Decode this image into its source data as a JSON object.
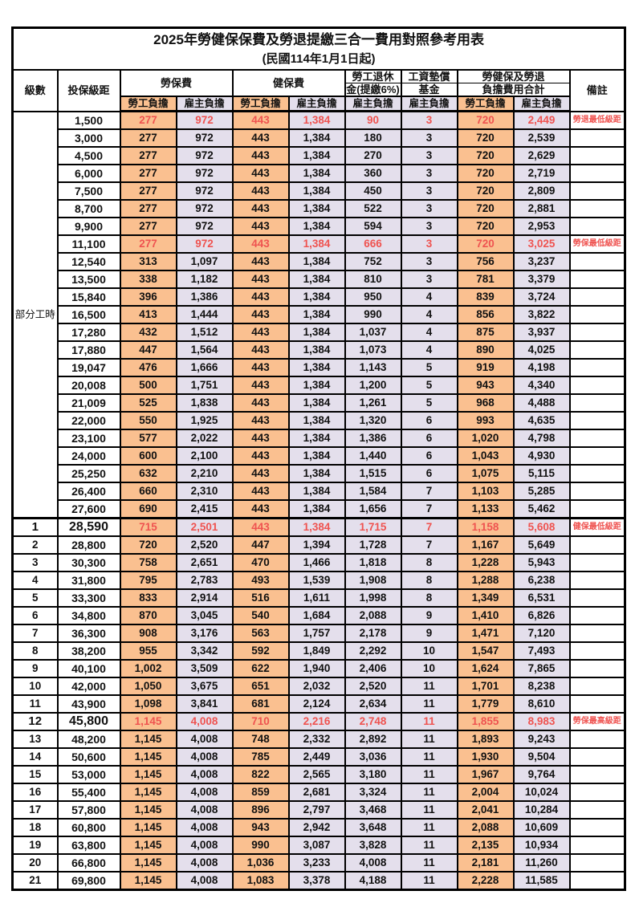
{
  "title": "2025年勞健保保費及勞退提繳三合一費用對照參考用表",
  "subtitle": "(民國114年1月1日起)",
  "colors": {
    "worker_bg": "#FAC090",
    "employer_bg": "#E4DFEC",
    "highlight_red": "#EF5350",
    "border": "#000000"
  },
  "header": {
    "level": "級數",
    "bracket": "投保級距",
    "labor_insurance": "勞保費",
    "health_insurance": "健保費",
    "pension_line1": "勞工退休",
    "pension_line2": "金(提繳6%)",
    "wage_fund_line1": "工資墊償",
    "wage_fund_line2": "基金",
    "total_line1": "勞健保及勞退",
    "total_line2": "負擔費用合計",
    "remark": "備註",
    "worker": "勞工負擔",
    "employer": "雇主負擔"
  },
  "part_time": {
    "label": "部分工時",
    "row_span": 23
  },
  "rows": [
    {
      "level": "",
      "bracket": "1,500",
      "values": [
        "277",
        "972",
        "443",
        "1,384",
        "90",
        "3",
        "720",
        "2,449"
      ],
      "note": "勞退最低級距",
      "red": true
    },
    {
      "level": "",
      "bracket": "3,000",
      "values": [
        "277",
        "972",
        "443",
        "1,384",
        "180",
        "3",
        "720",
        "2,539"
      ],
      "note": ""
    },
    {
      "level": "",
      "bracket": "4,500",
      "values": [
        "277",
        "972",
        "443",
        "1,384",
        "270",
        "3",
        "720",
        "2,629"
      ],
      "note": ""
    },
    {
      "level": "",
      "bracket": "6,000",
      "values": [
        "277",
        "972",
        "443",
        "1,384",
        "360",
        "3",
        "720",
        "2,719"
      ],
      "note": ""
    },
    {
      "level": "",
      "bracket": "7,500",
      "values": [
        "277",
        "972",
        "443",
        "1,384",
        "450",
        "3",
        "720",
        "2,809"
      ],
      "note": ""
    },
    {
      "level": "",
      "bracket": "8,700",
      "values": [
        "277",
        "972",
        "443",
        "1,384",
        "522",
        "3",
        "720",
        "2,881"
      ],
      "note": ""
    },
    {
      "level": "",
      "bracket": "9,900",
      "values": [
        "277",
        "972",
        "443",
        "1,384",
        "594",
        "3",
        "720",
        "2,953"
      ],
      "note": ""
    },
    {
      "level": "",
      "bracket": "11,100",
      "values": [
        "277",
        "972",
        "443",
        "1,384",
        "666",
        "3",
        "720",
        "3,025"
      ],
      "note": "勞保最低級距",
      "red": true
    },
    {
      "level": "",
      "bracket": "12,540",
      "values": [
        "313",
        "1,097",
        "443",
        "1,384",
        "752",
        "3",
        "756",
        "3,237"
      ],
      "note": ""
    },
    {
      "level": "",
      "bracket": "13,500",
      "values": [
        "338",
        "1,182",
        "443",
        "1,384",
        "810",
        "3",
        "781",
        "3,379"
      ],
      "note": ""
    },
    {
      "level": "",
      "bracket": "15,840",
      "values": [
        "396",
        "1,386",
        "443",
        "1,384",
        "950",
        "4",
        "839",
        "3,724"
      ],
      "note": ""
    },
    {
      "level": "",
      "bracket": "16,500",
      "values": [
        "413",
        "1,444",
        "443",
        "1,384",
        "990",
        "4",
        "856",
        "3,822"
      ],
      "note": ""
    },
    {
      "level": "",
      "bracket": "17,280",
      "values": [
        "432",
        "1,512",
        "443",
        "1,384",
        "1,037",
        "4",
        "875",
        "3,937"
      ],
      "note": ""
    },
    {
      "level": "",
      "bracket": "17,880",
      "values": [
        "447",
        "1,564",
        "443",
        "1,384",
        "1,073",
        "4",
        "890",
        "4,025"
      ],
      "note": ""
    },
    {
      "level": "",
      "bracket": "19,047",
      "values": [
        "476",
        "1,666",
        "443",
        "1,384",
        "1,143",
        "5",
        "919",
        "4,198"
      ],
      "note": ""
    },
    {
      "level": "",
      "bracket": "20,008",
      "values": [
        "500",
        "1,751",
        "443",
        "1,384",
        "1,200",
        "5",
        "943",
        "4,340"
      ],
      "note": ""
    },
    {
      "level": "",
      "bracket": "21,009",
      "values": [
        "525",
        "1,838",
        "443",
        "1,384",
        "1,261",
        "5",
        "968",
        "4,488"
      ],
      "note": ""
    },
    {
      "level": "",
      "bracket": "22,000",
      "values": [
        "550",
        "1,925",
        "443",
        "1,384",
        "1,320",
        "6",
        "993",
        "4,635"
      ],
      "note": ""
    },
    {
      "level": "",
      "bracket": "23,100",
      "values": [
        "577",
        "2,022",
        "443",
        "1,384",
        "1,386",
        "6",
        "1,020",
        "4,798"
      ],
      "note": ""
    },
    {
      "level": "",
      "bracket": "24,000",
      "values": [
        "600",
        "2,100",
        "443",
        "1,384",
        "1,440",
        "6",
        "1,043",
        "4,930"
      ],
      "note": ""
    },
    {
      "level": "",
      "bracket": "25,250",
      "values": [
        "632",
        "2,210",
        "443",
        "1,384",
        "1,515",
        "6",
        "1,075",
        "5,115"
      ],
      "note": ""
    },
    {
      "level": "",
      "bracket": "26,400",
      "values": [
        "660",
        "2,310",
        "443",
        "1,384",
        "1,584",
        "7",
        "1,103",
        "5,285"
      ],
      "note": ""
    },
    {
      "level": "",
      "bracket": "27,600",
      "values": [
        "690",
        "2,415",
        "443",
        "1,384",
        "1,656",
        "7",
        "1,133",
        "5,462"
      ],
      "note": ""
    },
    {
      "level": "1",
      "bracket": "28,590",
      "values": [
        "715",
        "2,501",
        "443",
        "1,384",
        "1,715",
        "7",
        "1,158",
        "5,608"
      ],
      "note": "健保最低級距",
      "red": true,
      "big": true
    },
    {
      "level": "2",
      "bracket": "28,800",
      "values": [
        "720",
        "2,520",
        "447",
        "1,394",
        "1,728",
        "7",
        "1,167",
        "5,649"
      ],
      "note": ""
    },
    {
      "level": "3",
      "bracket": "30,300",
      "values": [
        "758",
        "2,651",
        "470",
        "1,466",
        "1,818",
        "8",
        "1,228",
        "5,943"
      ],
      "note": ""
    },
    {
      "level": "4",
      "bracket": "31,800",
      "values": [
        "795",
        "2,783",
        "493",
        "1,539",
        "1,908",
        "8",
        "1,288",
        "6,238"
      ],
      "note": ""
    },
    {
      "level": "5",
      "bracket": "33,300",
      "values": [
        "833",
        "2,914",
        "516",
        "1,611",
        "1,998",
        "8",
        "1,349",
        "6,531"
      ],
      "note": ""
    },
    {
      "level": "6",
      "bracket": "34,800",
      "values": [
        "870",
        "3,045",
        "540",
        "1,684",
        "2,088",
        "9",
        "1,410",
        "6,826"
      ],
      "note": ""
    },
    {
      "level": "7",
      "bracket": "36,300",
      "values": [
        "908",
        "3,176",
        "563",
        "1,757",
        "2,178",
        "9",
        "1,471",
        "7,120"
      ],
      "note": ""
    },
    {
      "level": "8",
      "bracket": "38,200",
      "values": [
        "955",
        "3,342",
        "592",
        "1,849",
        "2,292",
        "10",
        "1,547",
        "7,493"
      ],
      "note": ""
    },
    {
      "level": "9",
      "bracket": "40,100",
      "values": [
        "1,002",
        "3,509",
        "622",
        "1,940",
        "2,406",
        "10",
        "1,624",
        "7,865"
      ],
      "note": ""
    },
    {
      "level": "10",
      "bracket": "42,000",
      "values": [
        "1,050",
        "3,675",
        "651",
        "2,032",
        "2,520",
        "11",
        "1,701",
        "8,238"
      ],
      "note": ""
    },
    {
      "level": "11",
      "bracket": "43,900",
      "values": [
        "1,098",
        "3,841",
        "681",
        "2,124",
        "2,634",
        "11",
        "1,779",
        "8,610"
      ],
      "note": ""
    },
    {
      "level": "12",
      "bracket": "45,800",
      "values": [
        "1,145",
        "4,008",
        "710",
        "2,216",
        "2,748",
        "11",
        "1,855",
        "8,983"
      ],
      "note": "勞保最高級距",
      "red": true,
      "big": true
    },
    {
      "level": "13",
      "bracket": "48,200",
      "values": [
        "1,145",
        "4,008",
        "748",
        "2,332",
        "2,892",
        "11",
        "1,893",
        "9,243"
      ],
      "note": ""
    },
    {
      "level": "14",
      "bracket": "50,600",
      "values": [
        "1,145",
        "4,008",
        "785",
        "2,449",
        "3,036",
        "11",
        "1,930",
        "9,504"
      ],
      "note": ""
    },
    {
      "level": "15",
      "bracket": "53,000",
      "values": [
        "1,145",
        "4,008",
        "822",
        "2,565",
        "3,180",
        "11",
        "1,967",
        "9,764"
      ],
      "note": ""
    },
    {
      "level": "16",
      "bracket": "55,400",
      "values": [
        "1,145",
        "4,008",
        "859",
        "2,681",
        "3,324",
        "11",
        "2,004",
        "10,024"
      ],
      "note": ""
    },
    {
      "level": "17",
      "bracket": "57,800",
      "values": [
        "1,145",
        "4,008",
        "896",
        "2,797",
        "3,468",
        "11",
        "2,041",
        "10,284"
      ],
      "note": ""
    },
    {
      "level": "18",
      "bracket": "60,800",
      "values": [
        "1,145",
        "4,008",
        "943",
        "2,942",
        "3,648",
        "11",
        "2,088",
        "10,609"
      ],
      "note": ""
    },
    {
      "level": "19",
      "bracket": "63,800",
      "values": [
        "1,145",
        "4,008",
        "990",
        "3,087",
        "3,828",
        "11",
        "2,135",
        "10,934"
      ],
      "note": ""
    },
    {
      "level": "20",
      "bracket": "66,800",
      "values": [
        "1,145",
        "4,008",
        "1,036",
        "3,233",
        "4,008",
        "11",
        "2,181",
        "11,260"
      ],
      "note": ""
    },
    {
      "level": "21",
      "bracket": "69,800",
      "values": [
        "1,145",
        "4,008",
        "1,083",
        "3,378",
        "4,188",
        "11",
        "2,228",
        "11,585"
      ],
      "note": ""
    }
  ],
  "column_kinds": [
    "worker",
    "employer",
    "worker",
    "employer",
    "employer",
    "employer",
    "worker",
    "employer"
  ]
}
